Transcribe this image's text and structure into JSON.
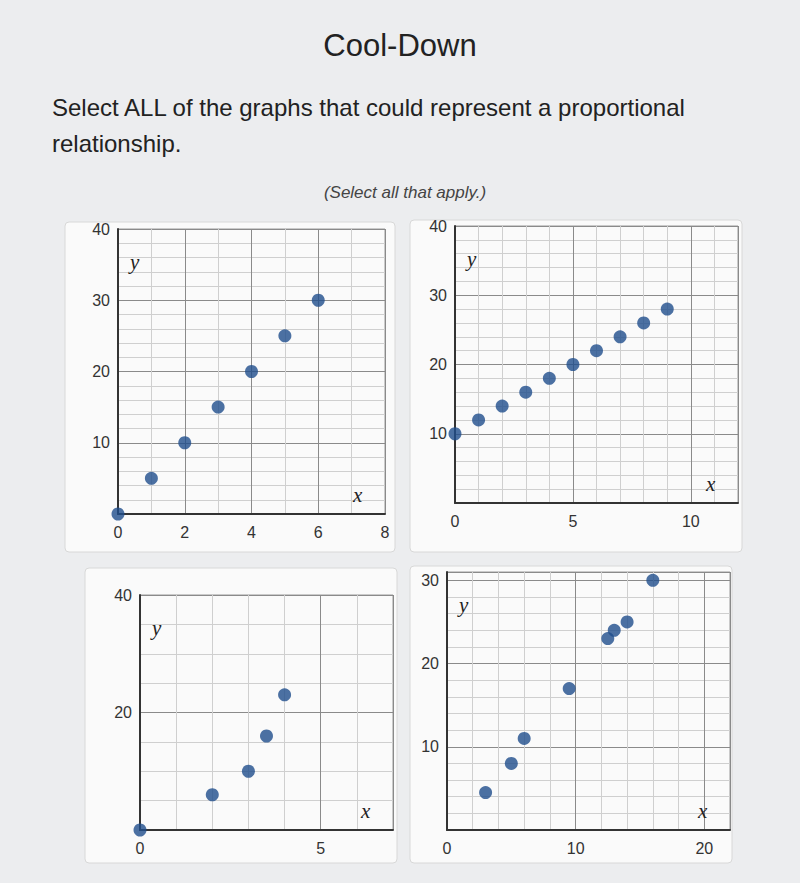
{
  "header": {
    "title": "Cool-Down",
    "question": "Select ALL of the graphs that could represent a proportional relationship.",
    "instruction": "(Select all that apply.)"
  },
  "chart_data": [
    {
      "type": "scatter",
      "x_label": "x",
      "y_label": "y",
      "color": "#1f4e8c",
      "grid": true,
      "x": [
        0,
        1,
        2,
        3,
        4,
        5,
        6
      ],
      "values": [
        0,
        5,
        10,
        15,
        20,
        25,
        30
      ],
      "xlim": [
        0,
        8
      ],
      "ylim": [
        0,
        40
      ],
      "xticks": [
        0,
        2,
        4,
        6,
        8
      ],
      "yticks": [
        10,
        20,
        30,
        40
      ]
    },
    {
      "type": "scatter",
      "x_label": "x",
      "y_label": "y",
      "color": "#1f4e8c",
      "grid": true,
      "x": [
        0,
        1,
        2,
        3,
        4,
        5,
        6,
        7,
        8,
        9
      ],
      "values": [
        10,
        12,
        14,
        16,
        18,
        20,
        22,
        24,
        26,
        28
      ],
      "xlim": [
        0,
        12
      ],
      "ylim": [
        0,
        40
      ],
      "xticks": [
        0,
        5,
        10
      ],
      "yticks": [
        10,
        20,
        30,
        40
      ]
    },
    {
      "type": "scatter",
      "x_label": "x",
      "y_label": "y",
      "color": "#1f4e8c",
      "grid": true,
      "x": [
        0,
        2,
        3,
        3.5,
        4
      ],
      "values": [
        0,
        6,
        10,
        16,
        23
      ],
      "xlim": [
        0,
        7
      ],
      "ylim": [
        0,
        40
      ],
      "xticks": [
        0,
        5
      ],
      "yticks": [
        20,
        40
      ]
    },
    {
      "type": "scatter",
      "x_label": "x",
      "y_label": "y",
      "color": "#1f4e8c",
      "grid": true,
      "x": [
        3,
        5,
        6,
        9.5,
        12.5,
        13,
        14,
        16
      ],
      "values": [
        4.5,
        8,
        11,
        17,
        23,
        24,
        25,
        30
      ],
      "xlim": [
        0,
        22
      ],
      "ylim": [
        0,
        31
      ],
      "xticks": [
        0,
        10,
        20
      ],
      "yticks": [
        10,
        20,
        30
      ]
    }
  ]
}
